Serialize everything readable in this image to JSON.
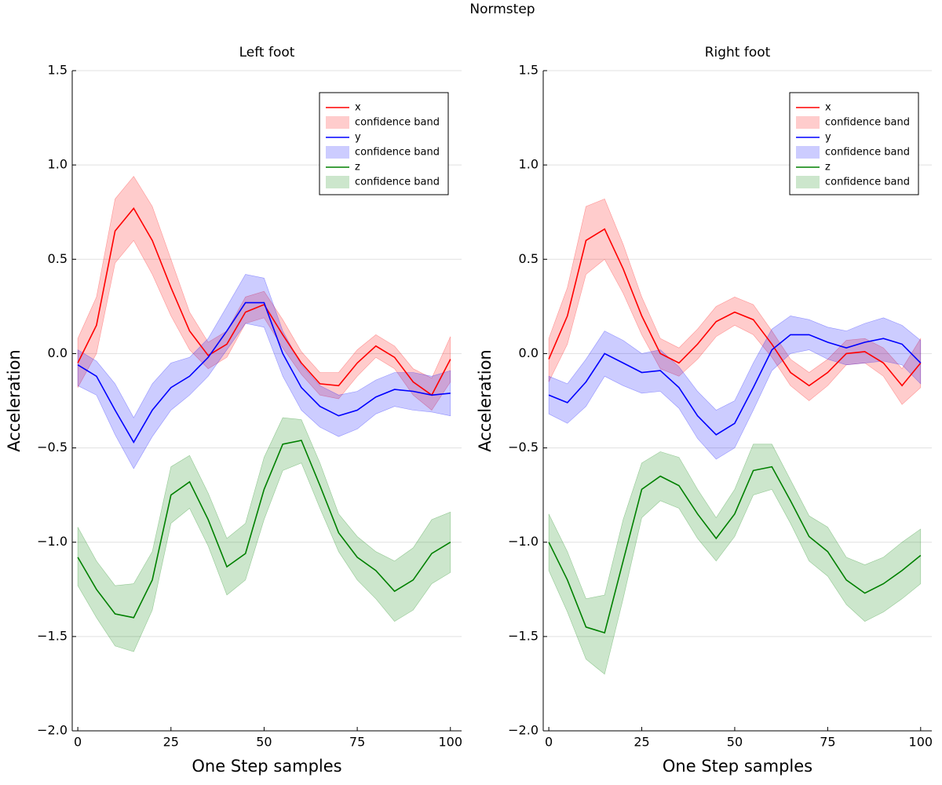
{
  "suptitle": "Normstep",
  "chart_data": [
    {
      "type": "line",
      "title": "Left foot",
      "xlabel": "One Step samples",
      "ylabel": "Acceleration",
      "xlim": [
        -1.5,
        103
      ],
      "ylim": [
        -2,
        1.5
      ],
      "xticks": [
        0,
        25,
        50,
        75,
        100
      ],
      "yticks": [
        {
          "value": -2,
          "label": "−2.0"
        },
        {
          "value": -1.5,
          "label": "−1.5"
        },
        {
          "value": -1,
          "label": "−1.0"
        },
        {
          "value": -0.5,
          "label": "−0.5"
        },
        {
          "value": 0,
          "label": "0.0"
        },
        0.5,
        {
          "value": 1,
          "label": "1.0"
        },
        1.5
      ],
      "grid": "y",
      "legend": "top right",
      "x": [
        0,
        5,
        10,
        15,
        20,
        25,
        30,
        35,
        40,
        45,
        50,
        55,
        60,
        65,
        70,
        75,
        80,
        85,
        90,
        95,
        100
      ],
      "series": [
        {
          "name": "x",
          "color": "#ff0000",
          "values": [
            -0.05,
            0.15,
            0.65,
            0.77,
            0.6,
            0.35,
            0.12,
            -0.01,
            0.05,
            0.22,
            0.26,
            0.1,
            -0.05,
            -0.16,
            -0.17,
            -0.05,
            0.04,
            -0.02,
            -0.15,
            -0.22,
            -0.03
          ],
          "band": {
            "name": "confidence band",
            "upper": [
              0.08,
              0.3,
              0.82,
              0.94,
              0.78,
              0.5,
              0.22,
              0.06,
              0.12,
              0.3,
              0.33,
              0.18,
              0.01,
              -0.1,
              -0.1,
              0.02,
              0.1,
              0.04,
              -0.08,
              -0.13,
              0.09
            ],
            "lower": [
              -0.18,
              0.0,
              0.48,
              0.6,
              0.42,
              0.2,
              0.02,
              -0.08,
              -0.02,
              0.16,
              0.19,
              0.03,
              -0.11,
              -0.22,
              -0.24,
              -0.12,
              -0.02,
              -0.08,
              -0.22,
              -0.3,
              -0.15
            ]
          }
        },
        {
          "name": "y",
          "color": "#0000ff",
          "values": [
            -0.06,
            -0.12,
            -0.3,
            -0.47,
            -0.3,
            -0.18,
            -0.12,
            -0.02,
            0.12,
            0.27,
            0.27,
            0.0,
            -0.18,
            -0.28,
            -0.33,
            -0.3,
            -0.23,
            -0.19,
            -0.2,
            -0.22,
            -0.21
          ],
          "band": {
            "name": "confidence band",
            "upper": [
              0.02,
              -0.04,
              -0.16,
              -0.34,
              -0.16,
              -0.05,
              -0.02,
              0.08,
              0.25,
              0.42,
              0.4,
              0.12,
              -0.06,
              -0.17,
              -0.22,
              -0.2,
              -0.14,
              -0.1,
              -0.1,
              -0.12,
              -0.09
            ],
            "lower": [
              -0.17,
              -0.22,
              -0.43,
              -0.61,
              -0.44,
              -0.3,
              -0.22,
              -0.12,
              0.02,
              0.16,
              0.14,
              -0.12,
              -0.3,
              -0.39,
              -0.44,
              -0.4,
              -0.32,
              -0.28,
              -0.3,
              -0.31,
              -0.33
            ]
          }
        },
        {
          "name": "z",
          "color": "#008000",
          "values": [
            -1.08,
            -1.25,
            -1.38,
            -1.4,
            -1.2,
            -0.75,
            -0.68,
            -0.88,
            -1.13,
            -1.06,
            -0.72,
            -0.48,
            -0.46,
            -0.7,
            -0.95,
            -1.08,
            -1.15,
            -1.26,
            -1.2,
            -1.06,
            -1.0
          ],
          "band": {
            "name": "confidence band",
            "upper": [
              -0.92,
              -1.1,
              -1.23,
              -1.22,
              -1.05,
              -0.6,
              -0.54,
              -0.74,
              -0.98,
              -0.9,
              -0.55,
              -0.34,
              -0.35,
              -0.58,
              -0.85,
              -0.97,
              -1.05,
              -1.1,
              -1.03,
              -0.88,
              -0.84
            ],
            "lower": [
              -1.23,
              -1.4,
              -1.55,
              -1.58,
              -1.36,
              -0.9,
              -0.82,
              -1.02,
              -1.28,
              -1.2,
              -0.88,
              -0.62,
              -0.58,
              -0.82,
              -1.05,
              -1.2,
              -1.3,
              -1.42,
              -1.36,
              -1.22,
              -1.16
            ]
          }
        }
      ]
    },
    {
      "type": "line",
      "title": "Right foot",
      "xlabel": "One Step samples",
      "ylabel": "Acceleration",
      "xlim": [
        -1.5,
        103
      ],
      "ylim": [
        -2,
        1.5
      ],
      "xticks": [
        0,
        25,
        50,
        75,
        100
      ],
      "yticks": [
        {
          "value": -2,
          "label": "−2.0"
        },
        {
          "value": -1.5,
          "label": "−1.5"
        },
        {
          "value": -1,
          "label": "−1.0"
        },
        {
          "value": -0.5,
          "label": "−0.5"
        },
        {
          "value": 0,
          "label": "0.0"
        },
        0.5,
        {
          "value": 1,
          "label": "1.0"
        },
        1.5
      ],
      "grid": "y",
      "legend": "top right",
      "x": [
        0,
        5,
        10,
        15,
        20,
        25,
        30,
        35,
        40,
        45,
        50,
        55,
        60,
        65,
        70,
        75,
        80,
        85,
        90,
        95,
        100
      ],
      "series": [
        {
          "name": "x",
          "color": "#ff0000",
          "values": [
            -0.03,
            0.2,
            0.6,
            0.66,
            0.45,
            0.2,
            0.0,
            -0.05,
            0.05,
            0.17,
            0.22,
            0.18,
            0.05,
            -0.1,
            -0.17,
            -0.1,
            0.0,
            0.01,
            -0.05,
            -0.17,
            -0.05
          ],
          "band": {
            "name": "confidence band",
            "upper": [
              0.08,
              0.35,
              0.78,
              0.82,
              0.58,
              0.3,
              0.08,
              0.03,
              0.13,
              0.25,
              0.3,
              0.26,
              0.12,
              -0.03,
              -0.1,
              -0.03,
              0.07,
              0.08,
              0.03,
              -0.08,
              0.08
            ],
            "lower": [
              -0.15,
              0.05,
              0.42,
              0.5,
              0.32,
              0.1,
              -0.08,
              -0.12,
              -0.03,
              0.09,
              0.15,
              0.1,
              -0.02,
              -0.17,
              -0.25,
              -0.17,
              -0.06,
              -0.05,
              -0.12,
              -0.27,
              -0.18
            ]
          }
        },
        {
          "name": "y",
          "color": "#0000ff",
          "values": [
            -0.22,
            -0.26,
            -0.15,
            0.0,
            -0.05,
            -0.1,
            -0.09,
            -0.18,
            -0.33,
            -0.43,
            -0.37,
            -0.18,
            0.02,
            0.1,
            0.1,
            0.06,
            0.03,
            0.06,
            0.08,
            0.05,
            -0.05
          ],
          "band": {
            "name": "confidence band",
            "upper": [
              -0.12,
              -0.16,
              -0.03,
              0.12,
              0.07,
              0.0,
              0.02,
              -0.07,
              -0.2,
              -0.3,
              -0.25,
              -0.05,
              0.13,
              0.2,
              0.18,
              0.14,
              0.12,
              0.16,
              0.19,
              0.15,
              0.07
            ],
            "lower": [
              -0.32,
              -0.37,
              -0.28,
              -0.12,
              -0.17,
              -0.21,
              -0.2,
              -0.29,
              -0.45,
              -0.56,
              -0.5,
              -0.3,
              -0.09,
              0.0,
              0.02,
              -0.03,
              -0.06,
              -0.05,
              -0.04,
              -0.06,
              -0.16
            ]
          }
        },
        {
          "name": "z",
          "color": "#008000",
          "values": [
            -1.0,
            -1.2,
            -1.45,
            -1.48,
            -1.1,
            -0.72,
            -0.65,
            -0.7,
            -0.85,
            -0.98,
            -0.85,
            -0.62,
            -0.6,
            -0.78,
            -0.97,
            -1.05,
            -1.2,
            -1.27,
            -1.22,
            -1.15,
            -1.07
          ],
          "band": {
            "name": "confidence band",
            "upper": [
              -0.85,
              -1.05,
              -1.3,
              -1.28,
              -0.88,
              -0.58,
              -0.52,
              -0.55,
              -0.72,
              -0.87,
              -0.72,
              -0.48,
              -0.48,
              -0.67,
              -0.86,
              -0.92,
              -1.08,
              -1.12,
              -1.08,
              -1.0,
              -0.93
            ],
            "lower": [
              -1.15,
              -1.37,
              -1.62,
              -1.7,
              -1.3,
              -0.87,
              -0.78,
              -0.82,
              -0.98,
              -1.1,
              -0.97,
              -0.75,
              -0.72,
              -0.9,
              -1.1,
              -1.18,
              -1.33,
              -1.42,
              -1.37,
              -1.3,
              -1.22
            ]
          }
        }
      ]
    }
  ]
}
